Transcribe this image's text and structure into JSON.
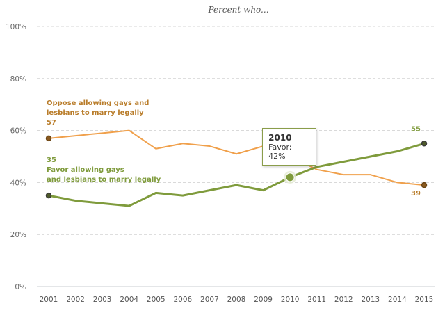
{
  "chart_data": {
    "type": "line",
    "title": "",
    "subtitle": "Percent who...",
    "xlabel": "",
    "ylabel": "",
    "x": [
      "2001",
      "2002",
      "2003",
      "2004",
      "2005",
      "2006",
      "2007",
      "2008",
      "2009",
      "2010",
      "2011",
      "2012",
      "2013",
      "2014",
      "2015"
    ],
    "ylim": [
      0,
      100
    ],
    "yticks": [
      0,
      20,
      40,
      60,
      80,
      100
    ],
    "ytick_labels": [
      "0%",
      "20%",
      "40%",
      "60%",
      "80%",
      "100%"
    ],
    "grid": true,
    "series": [
      {
        "name": "Oppose allowing gays and lesbians to marry legally",
        "label_lines": [
          "Oppose allowing gays and",
          "lesbians to marry legally"
        ],
        "color": "#f0a04b",
        "label_color": "#b97d2b",
        "values": [
          57,
          58,
          59,
          60,
          53,
          55,
          54,
          51,
          54,
          50,
          45,
          43,
          43,
          40,
          39
        ],
        "start_label": "57",
        "end_label": "39"
      },
      {
        "name": "Favor allowing gays and lesbians to marry legally",
        "label_lines": [
          "Favor allowing gays",
          "and lesbians to marry legally"
        ],
        "color": "#7f9b3c",
        "label_color": "#7f9b3c",
        "values": [
          35,
          33,
          32,
          31,
          36,
          35,
          37,
          39,
          37,
          42,
          46,
          48,
          50,
          52,
          55
        ],
        "start_label": "35",
        "end_label": "55"
      }
    ],
    "tooltip": {
      "year": "2010",
      "text": "Favor: 42%",
      "series_index": 1,
      "x_index": 9
    },
    "legend": "inline"
  }
}
